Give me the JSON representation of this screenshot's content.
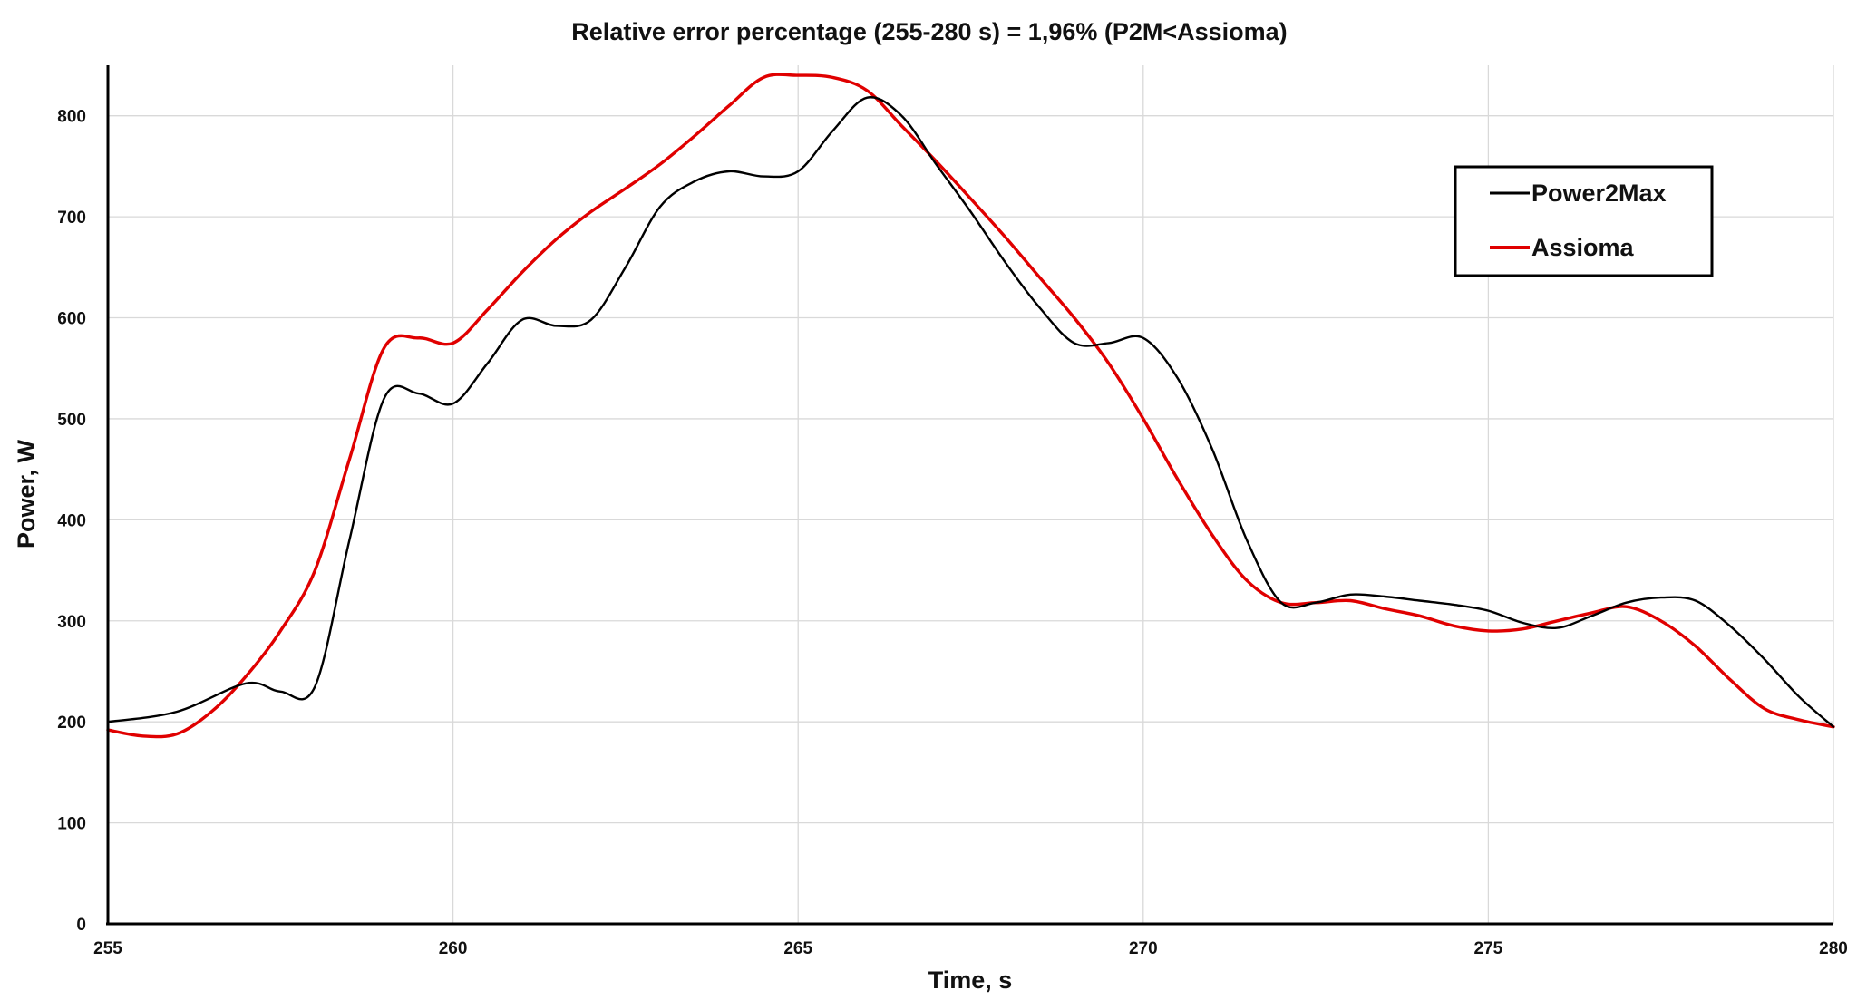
{
  "chart_data": {
    "type": "line",
    "title": "Relative error percentage (255-280 s) = 1,96% (P2M<Assioma)",
    "xlabel": "Time, s",
    "ylabel": "Power, W",
    "xlim": [
      255,
      280
    ],
    "ylim": [
      0,
      850
    ],
    "xticks": [
      255,
      260,
      265,
      270,
      275,
      280
    ],
    "yticks": [
      0,
      100,
      200,
      300,
      400,
      500,
      600,
      700,
      800
    ],
    "grid": true,
    "legend_position": "top-right",
    "series": [
      {
        "name": "Power2Max",
        "color": "#000000",
        "x": [
          255,
          256,
          257,
          257.5,
          258,
          258.5,
          259,
          259.5,
          260,
          260.5,
          261,
          261.5,
          262,
          262.5,
          263,
          263.5,
          264,
          264.5,
          265,
          265.5,
          266,
          266.5,
          267,
          267.5,
          268,
          268.5,
          269,
          269.5,
          270,
          270.5,
          271,
          271.5,
          272,
          272.5,
          273,
          273.5,
          274,
          274.5,
          275,
          275.5,
          276,
          276.5,
          277,
          277.5,
          278,
          278.5,
          279,
          279.5,
          280
        ],
        "y": [
          200,
          210,
          238,
          230,
          235,
          380,
          520,
          525,
          515,
          555,
          598,
          592,
          598,
          650,
          710,
          735,
          745,
          740,
          745,
          785,
          818,
          800,
          752,
          705,
          655,
          610,
          575,
          575,
          580,
          540,
          470,
          380,
          318,
          318,
          326,
          324,
          320,
          316,
          310,
          298,
          293,
          305,
          318,
          323,
          320,
          295,
          262,
          225,
          195
        ]
      },
      {
        "name": "Assioma",
        "color": "#e00000",
        "x": [
          255,
          255.5,
          256,
          256.5,
          257,
          257.5,
          258,
          258.5,
          259,
          259.5,
          260,
          260.5,
          261,
          261.5,
          262,
          262.5,
          263,
          263.5,
          264,
          264.5,
          265,
          265.5,
          266,
          266.5,
          267,
          267.5,
          268,
          268.5,
          269,
          269.5,
          270,
          270.5,
          271,
          271.5,
          272,
          272.5,
          273,
          273.5,
          274,
          274.5,
          275,
          275.5,
          276,
          276.5,
          277,
          277.5,
          278,
          278.5,
          279,
          279.5,
          280
        ],
        "y": [
          192,
          186,
          188,
          210,
          245,
          290,
          350,
          460,
          570,
          580,
          575,
          608,
          645,
          678,
          705,
          728,
          752,
          780,
          810,
          838,
          840,
          838,
          825,
          790,
          755,
          718,
          680,
          640,
          600,
          555,
          500,
          440,
          385,
          340,
          318,
          318,
          320,
          312,
          305,
          295,
          290,
          292,
          300,
          308,
          314,
          300,
          275,
          242,
          213,
          202,
          195
        ]
      }
    ]
  }
}
